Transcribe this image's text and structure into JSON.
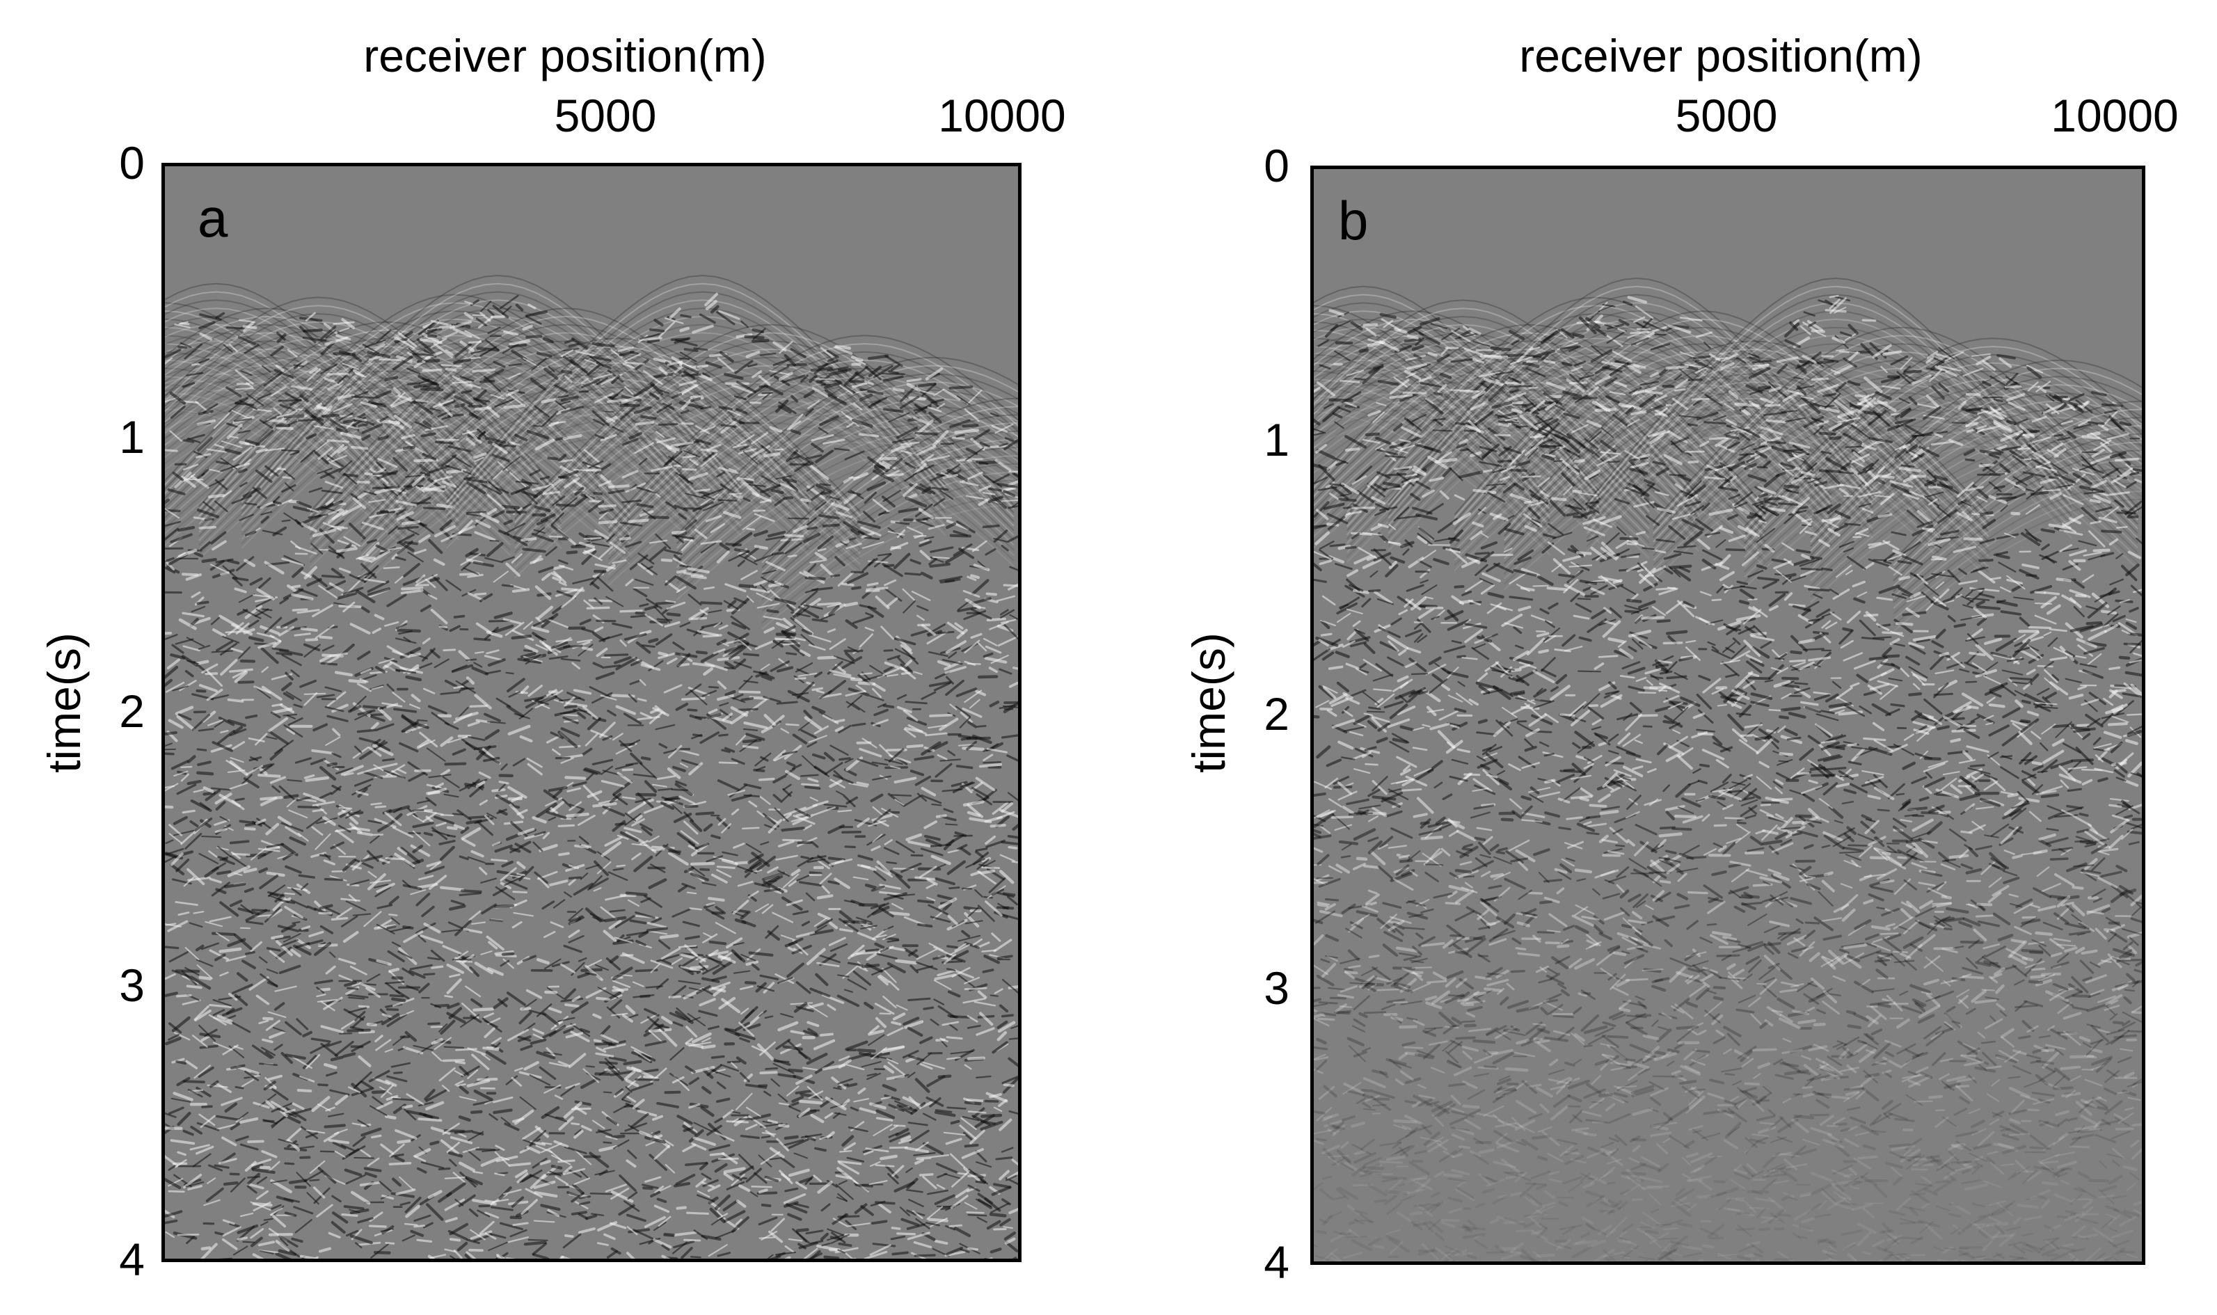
{
  "chart_data": [
    {
      "type": "heatmap",
      "panel_label": "a",
      "xlabel": "receiver position(m)",
      "ylabel": "time(s)",
      "xlim": [
        0,
        10000
      ],
      "ylim": [
        4,
        0
      ],
      "x_ticks": [
        5000,
        10000
      ],
      "y_ticks": [
        0,
        1,
        2,
        3,
        4
      ],
      "colormap": "gray",
      "background_color": "#808080",
      "arrival_times": [
        {
          "x": 0,
          "t": 0.5
        },
        {
          "x": 600,
          "t": 0.43
        },
        {
          "x": 1200,
          "t": 0.52
        },
        {
          "x": 1800,
          "t": 0.48
        },
        {
          "x": 2600,
          "t": 0.57
        },
        {
          "x": 3400,
          "t": 0.47
        },
        {
          "x": 3900,
          "t": 0.4
        },
        {
          "x": 4700,
          "t": 0.52
        },
        {
          "x": 5300,
          "t": 0.63
        },
        {
          "x": 6300,
          "t": 0.4
        },
        {
          "x": 7100,
          "t": 0.58
        },
        {
          "x": 8200,
          "t": 0.62
        },
        {
          "x": 9000,
          "t": 0.7
        },
        {
          "x": 10000,
          "t": 0.85
        }
      ]
    },
    {
      "type": "heatmap",
      "panel_label": "b",
      "xlabel": "receiver position(m)",
      "ylabel": "time(s)",
      "xlim": [
        0,
        10000
      ],
      "ylim": [
        4,
        0
      ],
      "x_ticks": [
        5000,
        10000
      ],
      "y_ticks": [
        0,
        1,
        2,
        3,
        4
      ],
      "colormap": "gray",
      "background_color": "#808080",
      "arrival_times": [
        {
          "x": 0,
          "t": 0.5
        },
        {
          "x": 600,
          "t": 0.43
        },
        {
          "x": 1200,
          "t": 0.52
        },
        {
          "x": 1800,
          "t": 0.48
        },
        {
          "x": 2600,
          "t": 0.57
        },
        {
          "x": 3400,
          "t": 0.47
        },
        {
          "x": 3900,
          "t": 0.4
        },
        {
          "x": 4700,
          "t": 0.52
        },
        {
          "x": 5300,
          "t": 0.63
        },
        {
          "x": 6300,
          "t": 0.4
        },
        {
          "x": 7100,
          "t": 0.58
        },
        {
          "x": 8200,
          "t": 0.62
        },
        {
          "x": 9000,
          "t": 0.7
        },
        {
          "x": 10000,
          "t": 0.85
        }
      ]
    }
  ]
}
